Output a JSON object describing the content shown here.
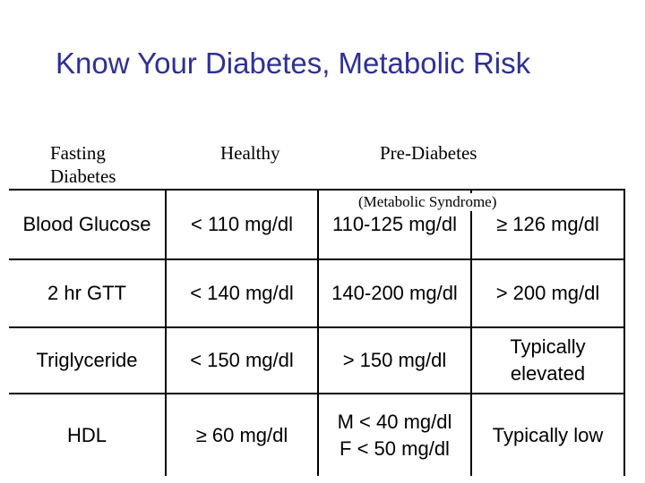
{
  "title": "Know Your Diabetes, Metabolic Risk",
  "headers": {
    "fasting": "Fasting Diabetes",
    "healthy": "Healthy",
    "prediabetes": "Pre-Diabetes",
    "metabolic_syndrome": "(Metabolic Syndrome)"
  },
  "rows": [
    {
      "label": "Blood Glucose",
      "healthy": "< 110 mg/dl",
      "prediabetes": [
        "110-125 mg/dl"
      ],
      "diabetes": [
        "≥ 126 mg/dl"
      ]
    },
    {
      "label": "2 hr GTT",
      "healthy": "< 140 mg/dl",
      "prediabetes": [
        "140-200 mg/dl"
      ],
      "diabetes": [
        "> 200 mg/dl"
      ]
    },
    {
      "label": "Triglyceride",
      "healthy": "< 150 mg/dl",
      "prediabetes": [
        "> 150 mg/dl"
      ],
      "diabetes": [
        "Typically",
        "elevated"
      ]
    },
    {
      "label": "HDL",
      "healthy": "≥ 60 mg/dl",
      "prediabetes": [
        "M < 40 mg/dl",
        "F < 50 mg/dl"
      ],
      "diabetes": [
        "Typically low"
      ]
    }
  ]
}
